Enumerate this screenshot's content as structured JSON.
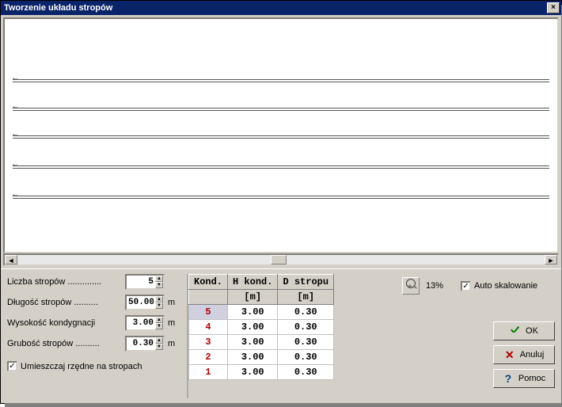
{
  "window": {
    "title": "Tworzenie układu stropów"
  },
  "fields": {
    "liczba_label": "Liczba stropów ..............",
    "liczba_value": "5",
    "dlugosc_label": "Długość stropów ..........",
    "dlugosc_value": "50.00",
    "wysokosc_label": "Wysokość kondygnacji",
    "wysokosc_value": "3.00",
    "grubosc_label": "Grubość stropów ..........",
    "grubosc_value": "0.30",
    "unit": "m",
    "checkbox_label": "Umieszczaj rzędne na stropach",
    "checkbox_checked": true
  },
  "table": {
    "headers": [
      "Kond.",
      "H kond.",
      "D stropu"
    ],
    "subheaders": [
      "",
      "[m]",
      "[m]"
    ],
    "rows": [
      {
        "kond": "5",
        "h": "3.00",
        "d": "0.30",
        "selected": true
      },
      {
        "kond": "4",
        "h": "3.00",
        "d": "0.30",
        "selected": false
      },
      {
        "kond": "3",
        "h": "3.00",
        "d": "0.30",
        "selected": false
      },
      {
        "kond": "2",
        "h": "3.00",
        "d": "0.30",
        "selected": false
      },
      {
        "kond": "1",
        "h": "3.00",
        "d": "0.30",
        "selected": false
      }
    ]
  },
  "zoom": {
    "percent": "13%",
    "auto_label": "Auto skalowanie",
    "auto_checked": true
  },
  "buttons": {
    "ok": "OK",
    "cancel": "Anuluj",
    "help": "Pomoc"
  },
  "preview": {
    "floor_count": 5,
    "floor_positions_pct": [
      26,
      38,
      50,
      63,
      76
    ]
  },
  "colors": {
    "titlebar": "#0a246a",
    "face": "#d4d0c8",
    "kond_text": "#b00000"
  }
}
